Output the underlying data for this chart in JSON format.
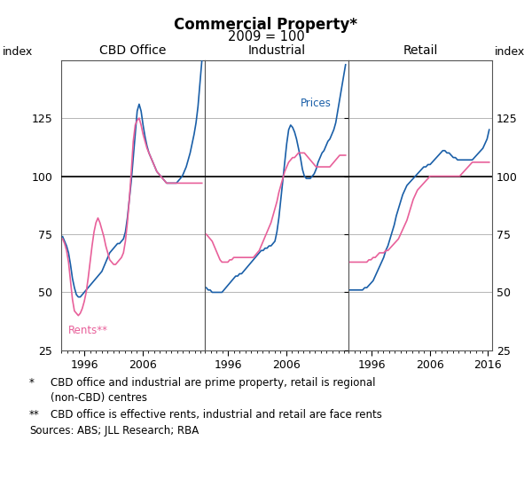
{
  "title": "Commercial Property*",
  "subtitle": "2009 = 100",
  "ylabel_left": "index",
  "ylabel_right": "index",
  "ylim": [
    25,
    150
  ],
  "yticks": [
    25,
    50,
    75,
    100,
    125
  ],
  "panels": [
    "CBD Office",
    "Industrial",
    "Retail"
  ],
  "price_color": "#1a5fa8",
  "rent_color": "#e8609a",
  "price_label": "Prices",
  "rent_label": "Rents**",
  "footnote1_star": "*",
  "footnote1_text": "CBD office and industrial are prime property, retail is regional",
  "footnote2_text": "(non-CBD) centres",
  "footnote3_star": "**",
  "footnote3_text": "CBD office is effective rents, industrial and retail are face rents",
  "footnote4_label": "Sources:",
  "footnote4_text": "ABS; JLL Research; RBA",
  "background_color": "#ffffff",
  "grid_color": "#aaaaaa",
  "panel_border_color": "#555555",
  "cbd_prices": [
    74,
    72,
    70,
    67,
    62,
    56,
    52,
    49,
    48,
    48,
    49,
    50,
    51,
    52,
    53,
    54,
    55,
    56,
    57,
    58,
    59,
    61,
    63,
    65,
    67,
    68,
    69,
    70,
    71,
    71,
    72,
    73,
    76,
    82,
    90,
    98,
    108,
    118,
    128,
    131,
    128,
    122,
    117,
    113,
    110,
    108,
    106,
    104,
    102,
    101,
    100,
    99,
    98,
    97,
    97,
    97,
    97,
    97,
    97,
    98,
    99,
    100,
    102,
    104,
    107,
    110,
    114,
    118,
    123,
    130,
    140,
    150
  ],
  "cbd_rents": [
    73,
    71,
    68,
    63,
    55,
    47,
    42,
    41,
    40,
    41,
    43,
    46,
    50,
    56,
    63,
    70,
    76,
    80,
    82,
    80,
    77,
    74,
    70,
    67,
    64,
    63,
    62,
    62,
    63,
    64,
    65,
    67,
    72,
    80,
    90,
    102,
    115,
    122,
    124,
    125,
    122,
    118,
    115,
    112,
    110,
    108,
    106,
    104,
    102,
    101,
    100,
    99,
    98,
    97,
    97,
    97,
    97,
    97,
    97,
    97,
    97,
    97,
    97,
    97,
    97,
    97,
    97,
    97,
    97,
    97,
    97,
    97
  ],
  "ind_prices": [
    52,
    51,
    51,
    50,
    50,
    50,
    50,
    50,
    50,
    51,
    52,
    53,
    54,
    55,
    56,
    57,
    57,
    58,
    58,
    59,
    60,
    61,
    62,
    63,
    64,
    65,
    66,
    67,
    68,
    68,
    69,
    69,
    70,
    70,
    71,
    72,
    76,
    82,
    90,
    98,
    106,
    114,
    120,
    122,
    121,
    119,
    116,
    112,
    108,
    103,
    100,
    99,
    99,
    99,
    100,
    101,
    103,
    106,
    108,
    110,
    111,
    113,
    115,
    116,
    118,
    120,
    123,
    128,
    133,
    138,
    143,
    148
  ],
  "ind_rents": [
    75,
    74,
    73,
    72,
    70,
    68,
    66,
    64,
    63,
    63,
    63,
    63,
    64,
    64,
    65,
    65,
    65,
    65,
    65,
    65,
    65,
    65,
    65,
    65,
    65,
    66,
    67,
    68,
    70,
    72,
    74,
    76,
    78,
    80,
    83,
    86,
    89,
    93,
    96,
    99,
    102,
    104,
    106,
    107,
    108,
    108,
    109,
    110,
    110,
    110,
    110,
    109,
    108,
    107,
    106,
    105,
    104,
    104,
    104,
    104,
    104,
    104,
    104,
    104,
    105,
    106,
    107,
    108,
    109,
    109,
    109,
    109
  ],
  "ret_prices": [
    51,
    51,
    51,
    51,
    51,
    51,
    51,
    52,
    52,
    53,
    54,
    55,
    57,
    59,
    61,
    63,
    65,
    68,
    70,
    73,
    76,
    79,
    83,
    86,
    89,
    92,
    94,
    96,
    97,
    98,
    99,
    100,
    101,
    102,
    103,
    104,
    104,
    105,
    105,
    106,
    107,
    108,
    109,
    110,
    111,
    111,
    110,
    110,
    109,
    108,
    108,
    107,
    107,
    107,
    107,
    107,
    107,
    107,
    107,
    108,
    109,
    110,
    111,
    112,
    114,
    116,
    120
  ],
  "ret_rents": [
    63,
    63,
    63,
    63,
    63,
    63,
    63,
    63,
    63,
    64,
    64,
    65,
    65,
    66,
    67,
    67,
    67,
    68,
    68,
    69,
    70,
    71,
    72,
    73,
    75,
    77,
    79,
    81,
    84,
    87,
    90,
    92,
    94,
    95,
    96,
    97,
    98,
    99,
    100,
    100,
    100,
    100,
    100,
    100,
    100,
    100,
    100,
    100,
    100,
    100,
    100,
    100,
    100,
    101,
    102,
    103,
    104,
    105,
    106,
    106,
    106,
    106,
    106,
    106,
    106,
    106,
    106
  ],
  "xstart": 1992.25,
  "cbd_xend": 2016.25,
  "ind_xend": 2016.25,
  "ret_xend": 2016.25,
  "xlim": [
    1992.0,
    2016.75
  ],
  "xticks_cbd": [
    1996,
    2006
  ],
  "xticks_ind": [
    1996,
    2006
  ],
  "xticks_ret": [
    1996,
    2006,
    2016
  ]
}
